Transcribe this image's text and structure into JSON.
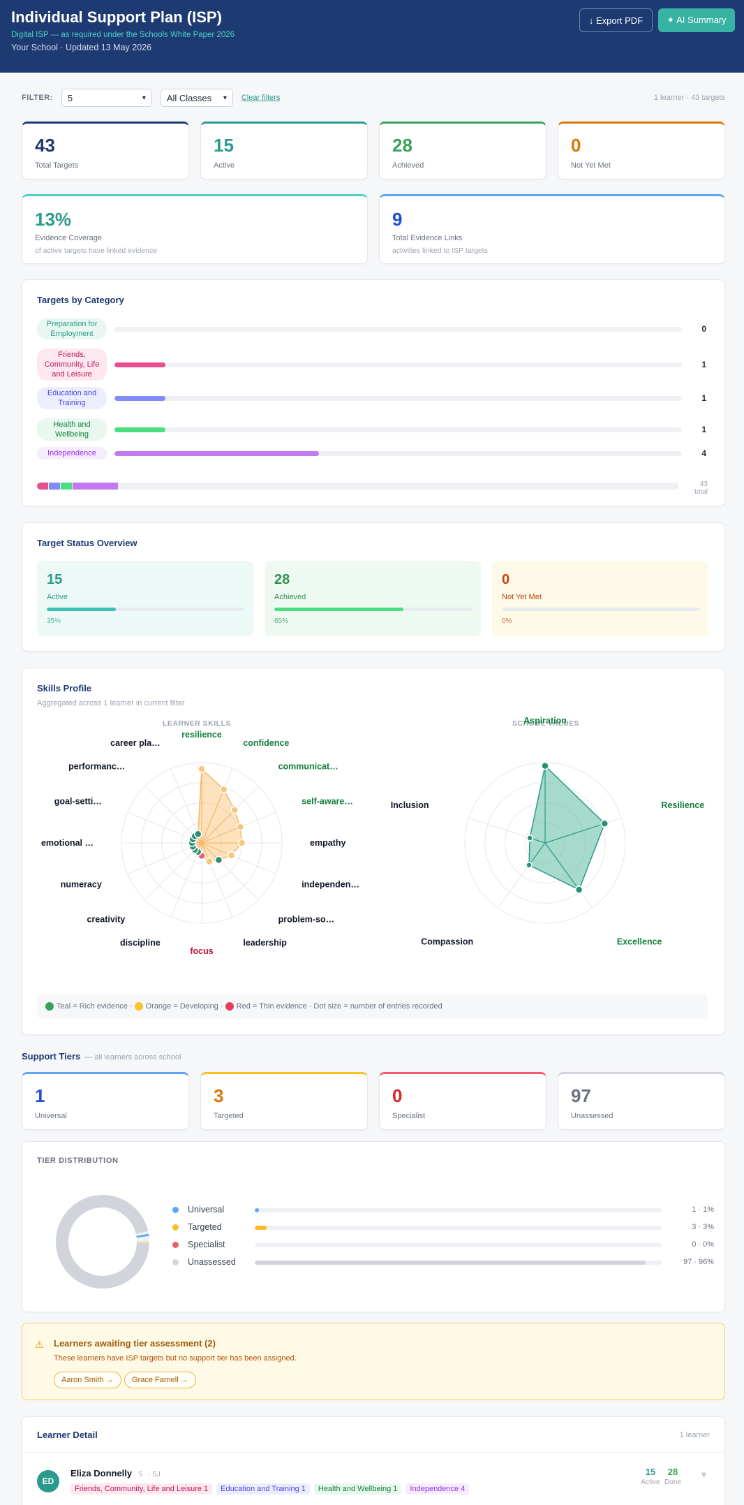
{
  "header": {
    "title": "Individual Support Plan (ISP)",
    "subtitle": "Digital ISP — as required under the Schools White Paper 2026",
    "meta": "Your School · Updated 13 May 2026",
    "export_label": "↓ Export PDF",
    "ai_label": "✦ AI Summary"
  },
  "filter": {
    "label": "FILTER:",
    "year_value": "5",
    "class_value": "All Classes",
    "clear_label": "Clear filters",
    "summary": "1 learner · 43 targets"
  },
  "stats": [
    {
      "value": "43",
      "label": "Total Targets",
      "color": "#1e3a72"
    },
    {
      "value": "15",
      "label": "Active",
      "color": "#2b9a8d"
    },
    {
      "value": "28",
      "label": "Achieved",
      "color": "#3aa15a"
    },
    {
      "value": "0",
      "label": "Not Yet Met",
      "color": "#d97706"
    }
  ],
  "evidence": [
    {
      "value": "13%",
      "label": "Evidence Coverage",
      "sub": "of active targets have linked evidence",
      "color": "#2b9a8d"
    },
    {
      "value": "9",
      "label": "Total Evidence Links",
      "sub": "activities linked to ISP targets",
      "color": "#1d4ed8"
    }
  ],
  "categories": {
    "title": "Targets by Category",
    "items": [
      {
        "name": "Preparation for Employment",
        "count": "0",
        "fill": 0,
        "color": "#2b9a8d",
        "bg": "#e8f7f2",
        "text": "#2b9a8d"
      },
      {
        "name": "Friends, Community, Life and Leisure",
        "count": "1",
        "fill": 0.09,
        "color": "#e84f8f",
        "bg": "#fde8f0",
        "text": "#be185d"
      },
      {
        "name": "Education and Training",
        "count": "1",
        "fill": 0.09,
        "color": "#818cf8",
        "bg": "#eceefe",
        "text": "#4f46e5"
      },
      {
        "name": "Health and Wellbeing",
        "count": "1",
        "fill": 0.09,
        "color": "#4ade80",
        "bg": "#e8f8ee",
        "text": "#15803d"
      },
      {
        "name": "Independence",
        "count": "4",
        "fill": 0.36,
        "color": "#c27aee",
        "bg": "#f7ecfd",
        "text": "#9333ea"
      }
    ],
    "stack": [
      {
        "color": "#e84f8f",
        "frac": 0.0175
      },
      {
        "color": "#818cf8",
        "frac": 0.0175
      },
      {
        "color": "#4ade80",
        "frac": 0.0175
      },
      {
        "color": "#c27aee",
        "frac": 0.07
      }
    ],
    "total": "43 total"
  },
  "status": {
    "title": "Target Status Overview",
    "items": [
      {
        "value": "15",
        "label": "Active",
        "pct": "35%",
        "fill": 0.35,
        "bg": "#edf9f6",
        "color": "#2b9a8d",
        "bar": "#3cc2b4"
      },
      {
        "value": "28",
        "label": "Achieved",
        "pct": "65%",
        "fill": 0.65,
        "bg": "#eefaf1",
        "color": "#2f8f4e",
        "bar": "#4ade80"
      },
      {
        "value": "0",
        "label": "Not Yet Met",
        "pct": "0%",
        "fill": 0,
        "bg": "#fefae8",
        "color": "#c2410c",
        "bar": "#f59e0b"
      }
    ]
  },
  "skills": {
    "title": "Skills Profile",
    "subtitle": "Aggregated across 1 learner in current filter",
    "learner_head": "LEARNER SKILLS",
    "school_head": "SCHOOL VALUES",
    "learner": [
      {
        "name": "resilience",
        "level": 0.92,
        "status": "developing",
        "label_color": "#15803d"
      },
      {
        "name": "confidence",
        "level": 0.72,
        "status": "developing",
        "label_color": "#15803d"
      },
      {
        "name": "communicat…",
        "level": 0.58,
        "status": "developing",
        "label_color": "#15803d"
      },
      {
        "name": "self-aware…",
        "level": 0.52,
        "status": "developing",
        "label_color": "#15803d"
      },
      {
        "name": "empathy",
        "level": 0.5,
        "status": "developing",
        "label_color": "#111827"
      },
      {
        "name": "independen…",
        "level": 0.4,
        "status": "developing",
        "label_color": "#111827"
      },
      {
        "name": "problem-so…",
        "level": 0.3,
        "status": "rich",
        "label_color": "#111827"
      },
      {
        "name": "leadership",
        "level": 0.25,
        "status": "developing",
        "label_color": "#111827"
      },
      {
        "name": "focus",
        "level": 0.16,
        "status": "thin",
        "label_color": "#be123c"
      },
      {
        "name": "discipline",
        "level": 0.12,
        "status": "rich",
        "label_color": "#111827"
      },
      {
        "name": "creativity",
        "level": 0.12,
        "status": "rich",
        "label_color": "#111827"
      },
      {
        "name": "numeracy",
        "level": 0.12,
        "status": "rich",
        "label_color": "#111827"
      },
      {
        "name": "emotional …",
        "level": 0.12,
        "status": "rich",
        "label_color": "#111827"
      },
      {
        "name": "goal-setti…",
        "level": 0.12,
        "status": "rich",
        "label_color": "#111827"
      },
      {
        "name": "performanc…",
        "level": 0.12,
        "status": "rich",
        "label_color": "#111827"
      },
      {
        "name": "career pla…",
        "level": 0.12,
        "status": "rich",
        "label_color": "#111827"
      }
    ],
    "school": [
      {
        "name": "Aspiration",
        "level": 0.96,
        "status": "rich",
        "label_color": "#15803d"
      },
      {
        "name": "Resilience",
        "level": 0.78,
        "status": "rich",
        "label_color": "#15803d"
      },
      {
        "name": "Excellence",
        "level": 0.72,
        "status": "rich",
        "label_color": "#15803d"
      },
      {
        "name": "Compassion",
        "level": 0.34,
        "status": "rich",
        "label_color": "#111827"
      },
      {
        "name": "Inclusion",
        "level": 0.2,
        "status": "rich",
        "label_color": "#111827"
      }
    ],
    "legend": "Teal = Rich evidence · Orange = Developing · Red = Thin evidence · Dot size = number of entries recorded",
    "legend_parts": [
      "Teal = Rich evidence ·",
      "Orange = Developing ·",
      "Red = Thin evidence · Dot size = number of entries recorded"
    ]
  },
  "tiers": {
    "title": "Support Tiers",
    "subtitle": "— all learners across school",
    "items": [
      {
        "value": "1",
        "label": "Universal",
        "color": "#1d4ed8",
        "bar": "#60a5fa"
      },
      {
        "value": "3",
        "label": "Targeted",
        "color": "#d97706",
        "bar": "#fbbf24"
      },
      {
        "value": "0",
        "label": "Specialist",
        "color": "#dc2626",
        "bar": "#ef5b6a"
      },
      {
        "value": "97",
        "label": "Unassessed",
        "color": "#6b7280",
        "bar": "#d1d5db"
      }
    ],
    "dist_title": "TIER DISTRIBUTION",
    "dist": [
      {
        "name": "Universal",
        "value": "1 · 1%",
        "frac": 0.01,
        "color": "#60a5fa"
      },
      {
        "name": "Targeted",
        "value": "3 · 3%",
        "frac": 0.03,
        "color": "#fbbf24"
      },
      {
        "name": "Specialist",
        "value": "0 · 0%",
        "frac": 0,
        "color": "#ef5b6a"
      },
      {
        "name": "Unassessed",
        "value": "97 · 96%",
        "frac": 0.96,
        "color": "#d1d5db"
      }
    ]
  },
  "awaiting": {
    "icon": "warning-icon",
    "title": "Learners awaiting tier assessment (2)",
    "text": "These learners have ISP targets but no support tier has been assigned.",
    "chips": [
      "Aaron Smith →",
      "Grace Farnell →"
    ]
  },
  "detail": {
    "title": "Learner Detail",
    "count": "1 learner",
    "learner": {
      "initials": "ED",
      "name": "Eliza Donnelly",
      "year": "5",
      "class": "· 5J",
      "active": "15",
      "active_label": "Active",
      "done": "28",
      "done_label": "Done",
      "tags": [
        {
          "text": "Friends, Community, Life and Leisure 1",
          "bg": "#fde8f0",
          "color": "#be185d"
        },
        {
          "text": "Education and Training 1",
          "bg": "#eceefe",
          "color": "#4f46e5"
        },
        {
          "text": "Health and Wellbeing 1",
          "bg": "#e8f8ee",
          "color": "#15803d"
        },
        {
          "text": "Independence 4",
          "bg": "#f7ecfd",
          "color": "#9333ea"
        }
      ]
    }
  }
}
